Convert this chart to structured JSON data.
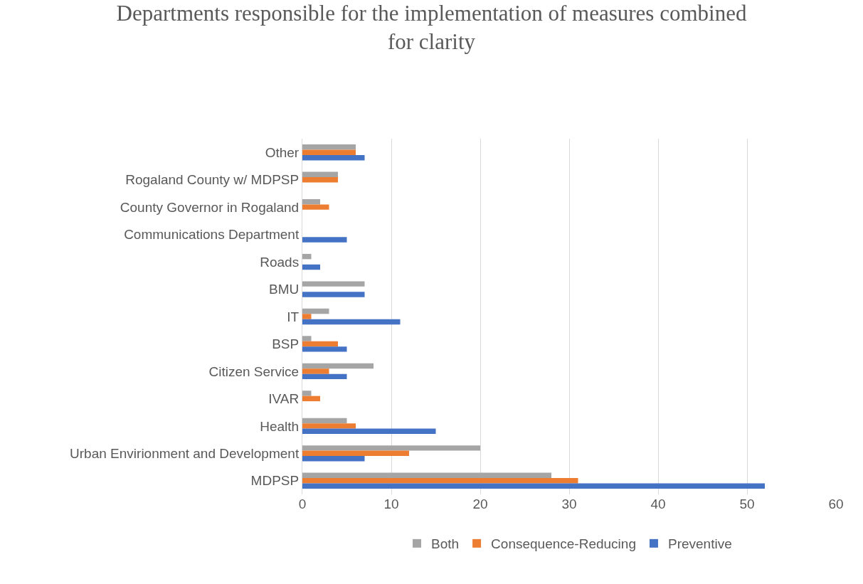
{
  "chart_data": {
    "type": "bar",
    "orientation": "horizontal",
    "title": "Departments responsible for the implementation of measures combined for clarity",
    "categories": [
      "Other",
      "Rogaland County w/ MDPSP",
      "County Governor in Rogaland",
      "Communications Department",
      "Roads",
      "BMU",
      "IT",
      "BSP",
      "Citizen Service",
      "IVAR",
      "Health",
      "Urban Envirionment and Development",
      "MDPSP"
    ],
    "series": [
      {
        "name": "Both",
        "color": "#a5a5a5",
        "values": [
          6,
          4,
          2,
          null,
          1,
          7,
          3,
          1,
          8,
          1,
          5,
          20,
          28
        ]
      },
      {
        "name": "Consequence-Reducing",
        "color": "#ed7d31",
        "values": [
          6,
          4,
          3,
          null,
          null,
          null,
          1,
          4,
          3,
          2,
          6,
          12,
          31
        ]
      },
      {
        "name": "Preventive",
        "color": "#4472c4",
        "values": [
          7,
          null,
          null,
          5,
          2,
          7,
          11,
          5,
          5,
          null,
          15,
          7,
          52
        ]
      }
    ],
    "xlim": [
      0,
      60
    ],
    "xticks": [
      0,
      10,
      20,
      30,
      40,
      50,
      60
    ],
    "grid": "x",
    "legend": "bottom"
  }
}
